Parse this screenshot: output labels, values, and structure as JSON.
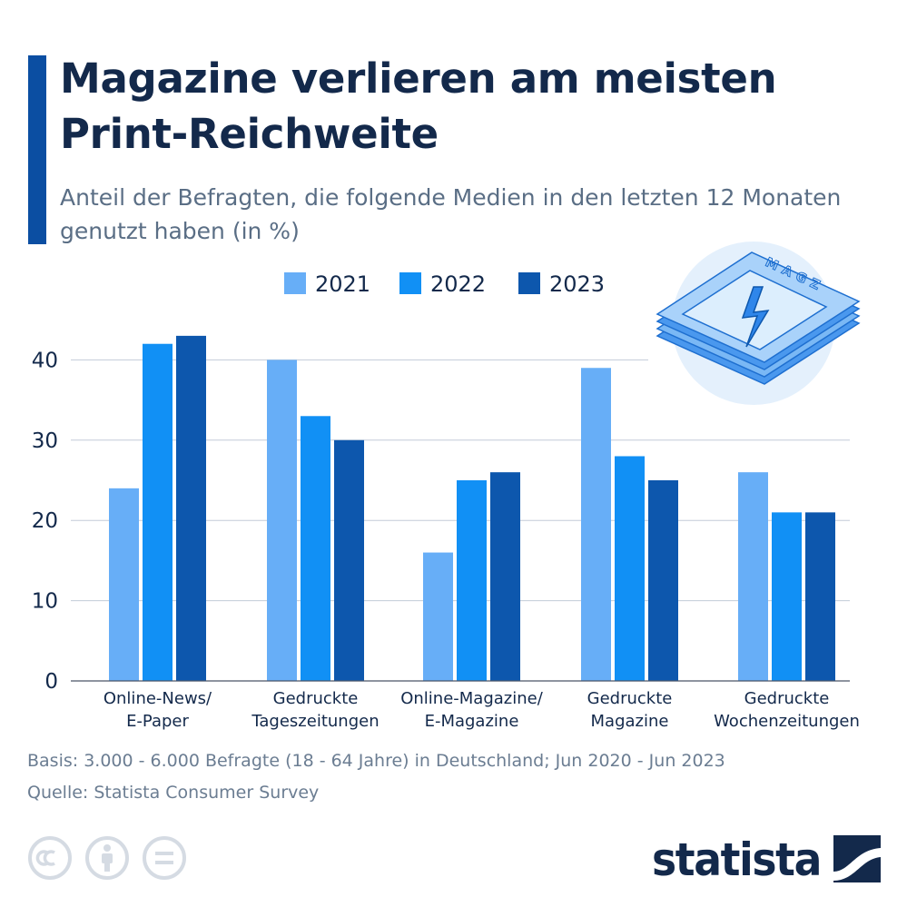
{
  "header": {
    "title": "Magazine verlieren am meisten Print-Reichweite",
    "subtitle": "Anteil der Befragten, die folgende Medien in den letzten 12 Monaten genutzt haben (in %)"
  },
  "chart_data": {
    "type": "bar",
    "title": "Magazine verlieren am meisten Print-Reichweite",
    "subtitle": "Anteil der Befragten, die folgende Medien in den letzten 12 Monaten genutzt haben (in %)",
    "categories": [
      [
        "Online-News/",
        "E-Paper"
      ],
      [
        "Gedruckte",
        "Tageszeitungen"
      ],
      [
        "Online-Magazine/",
        "E-Magazine"
      ],
      [
        "Gedruckte",
        "Magazine"
      ],
      [
        "Gedruckte",
        "Wochenzeitungen"
      ]
    ],
    "series": [
      {
        "name": "2021",
        "color": "#67aef7",
        "values": [
          24,
          40,
          16,
          39,
          26
        ]
      },
      {
        "name": "2022",
        "color": "#1190f5",
        "values": [
          42,
          33,
          25,
          28,
          21
        ]
      },
      {
        "name": "2023",
        "color": "#0d57ad",
        "values": [
          43,
          30,
          26,
          25,
          21
        ]
      }
    ],
    "yticks": [
      0,
      10,
      20,
      30,
      40
    ],
    "ylim": [
      0,
      45
    ],
    "grid": true,
    "legend": "top-center"
  },
  "footer": {
    "basis": "Basis: 3.000 - 6.000 Befragte (18 - 64 Jahre) in Deutschland; Jun 2020 - Jun 2023",
    "source": "Quelle: Statista Consumer Survey"
  },
  "illustration": {
    "text": "MAGZ",
    "icon": "magazine-lightning-icon"
  },
  "license_icons": [
    "cc-icon",
    "attribution-icon",
    "no-derivatives-icon"
  ],
  "brand": {
    "name": "statista",
    "color": "#13294b"
  }
}
